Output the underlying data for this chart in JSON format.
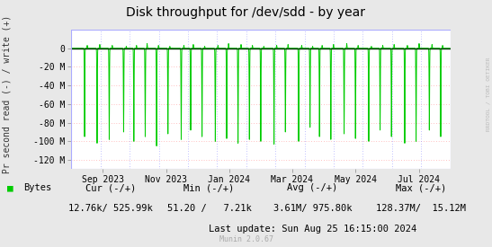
{
  "title": "Disk throughput for /dev/sdd - by year",
  "ylabel": "Pr second read (-) / write (+)",
  "background_color": "#e8e8e8",
  "plot_bg_color": "#ffffff",
  "line_color": "#00cc00",
  "zero_line_color": "#003300",
  "ylim": [
    -130,
    20
  ],
  "ytick_vals": [
    0,
    -20,
    -40,
    -60,
    -80,
    -100,
    -120
  ],
  "ytick_labels": [
    "0",
    "-20 M",
    "-40 M",
    "-60 M",
    "-80 M",
    "-100 M",
    "-120 M"
  ],
  "date_labels": [
    "Sep 2023",
    "Nov 2023",
    "Jan 2024",
    "Mar 2024",
    "May 2024",
    "Jul 2024"
  ],
  "date_positions": [
    0.083,
    0.25,
    0.417,
    0.583,
    0.75,
    0.917
  ],
  "legend_label": "Bytes",
  "legend_color": "#00cc00",
  "cur_label": "Cur (-/+)",
  "cur_value": "12.76k/ 525.99k",
  "min_label": "Min (-/+)",
  "min_value": "51.20 /   7.21k",
  "avg_label": "Avg (-/+)",
  "avg_value": "3.61M/ 975.80k",
  "max_label": "Max (-/+)",
  "max_value": "128.37M/  15.12M",
  "last_update": "Last update: Sun Aug 25 16:15:00 2024",
  "munin_version": "Munin 2.0.67",
  "watermark": "RRDTOOL / TOBI OETIKER",
  "title_fontsize": 10,
  "tick_fontsize": 7,
  "legend_fontsize": 7.5,
  "munin_fontsize": 6,
  "neg_spikes": [
    0.035,
    0.068,
    0.1,
    0.138,
    0.165,
    0.195,
    0.225,
    0.255,
    0.29,
    0.315,
    0.345,
    0.38,
    0.41,
    0.44,
    0.47,
    0.5,
    0.535,
    0.565,
    0.6,
    0.63,
    0.655,
    0.685,
    0.72,
    0.75,
    0.785,
    0.815,
    0.845,
    0.88,
    0.91,
    0.945,
    0.975
  ],
  "neg_depths": [
    95,
    102,
    98,
    90,
    100,
    95,
    105,
    92,
    98,
    88,
    95,
    100,
    97,
    102,
    98,
    100,
    103,
    90,
    100,
    85,
    95,
    98,
    92,
    97,
    100,
    88,
    95,
    102,
    100,
    88,
    95
  ],
  "pos_spikes": [
    0.042,
    0.075,
    0.108,
    0.145,
    0.172,
    0.2,
    0.23,
    0.26,
    0.297,
    0.322,
    0.352,
    0.387,
    0.415,
    0.448,
    0.478,
    0.508,
    0.542,
    0.572,
    0.608,
    0.637,
    0.662,
    0.692,
    0.727,
    0.757,
    0.792,
    0.822,
    0.852,
    0.887,
    0.918,
    0.952,
    0.98
  ],
  "pos_depths": [
    3,
    4,
    3,
    2,
    3,
    5,
    3,
    2,
    3,
    4,
    2,
    3,
    5,
    4,
    3,
    2,
    3,
    4,
    3,
    2,
    3,
    4,
    5,
    3,
    2,
    3,
    4,
    3,
    5,
    4,
    3
  ]
}
